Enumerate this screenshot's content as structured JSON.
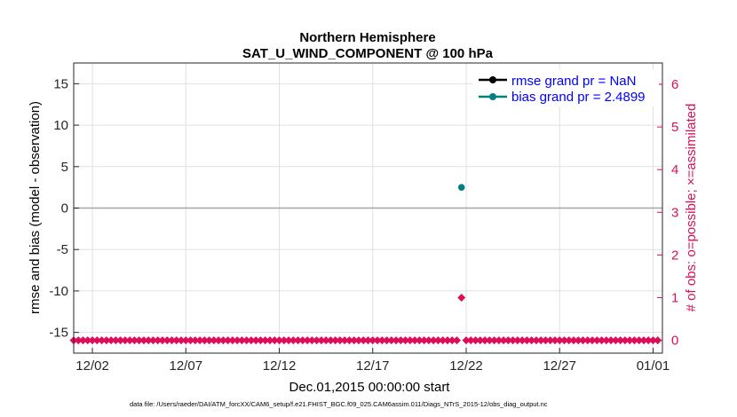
{
  "chart_data": {
    "type": "scatter",
    "title": "Northern Hemisphere",
    "subtitle": "SAT_U_WIND_COMPONENT @ 100 hPa",
    "xlabel": "Dec.01,2015 00:00:00 start",
    "ylabel_left": "rmse and bias (model - observation)",
    "ylabel_right": "# of obs: o=possible; ×=assimilated",
    "footnote": "data file: /Users/raeder/DAI/ATM_forcXX/CAM6_setup/f.e21.FHIST_BGC.f09_025.CAM6assim.011/Diags_NTrS_2015-12/obs_diag_output.nc",
    "xlim": [
      0,
      31.5
    ],
    "ylim_left": [
      -17.5,
      17.5
    ],
    "ylim_right": [
      -0.3,
      6.5
    ],
    "x_ticks": [
      {
        "day": 1,
        "label": "12/02"
      },
      {
        "day": 6,
        "label": "12/07"
      },
      {
        "day": 11,
        "label": "12/12"
      },
      {
        "day": 16,
        "label": "12/17"
      },
      {
        "day": 21,
        "label": "12/22"
      },
      {
        "day": 26,
        "label": "12/27"
      },
      {
        "day": 31,
        "label": "01/01"
      }
    ],
    "y_ticks_left": [
      {
        "value": 15,
        "label": "15"
      },
      {
        "value": 10,
        "label": "10"
      },
      {
        "value": 5,
        "label": "5"
      },
      {
        "value": 0,
        "label": "0"
      },
      {
        "value": -5,
        "label": "-5"
      },
      {
        "value": -10,
        "label": "-10"
      },
      {
        "value": -15,
        "label": "-15"
      }
    ],
    "y_ticks_right": [
      {
        "value": 0,
        "label": "0"
      },
      {
        "value": 1,
        "label": "1"
      },
      {
        "value": 2,
        "label": "2"
      },
      {
        "value": 3,
        "label": "3"
      },
      {
        "value": 4,
        "label": "4"
      },
      {
        "value": 5,
        "label": "5"
      },
      {
        "value": 6,
        "label": "6"
      }
    ],
    "zero_line": 0,
    "series": [
      {
        "name": "rmse grand pr = NaN",
        "color": "#000000",
        "points": []
      },
      {
        "name": "bias grand pr = 2.4899",
        "color": "#008080",
        "points": [
          {
            "x": 20.75,
            "y": 2.49
          }
        ]
      }
    ],
    "obs_counts": {
      "color": "#dd0e59",
      "x_start": 0.0,
      "x_end": 31.25,
      "step": 0.25,
      "value": 0,
      "gap_day": 20.75,
      "special": {
        "x": 20.75,
        "value": 1
      }
    }
  }
}
